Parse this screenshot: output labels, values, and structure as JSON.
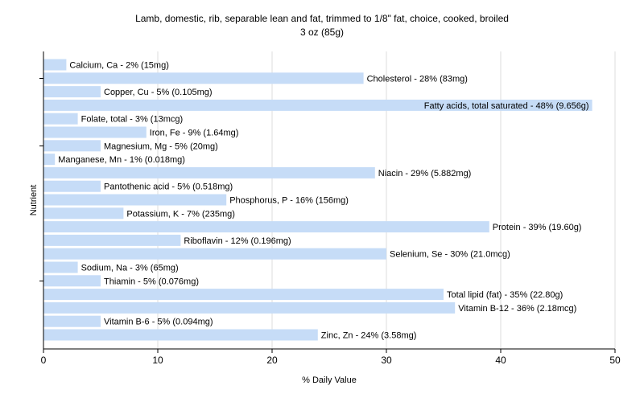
{
  "chart_data": {
    "type": "bar",
    "orientation": "horizontal",
    "title": "Lamb, domestic, rib, separable lean and fat, trimmed to 1/8\" fat, choice, cooked, broiled",
    "subtitle": "3 oz (85g)",
    "xlabel": "% Daily Value",
    "ylabel": "Nutrient",
    "xlim": [
      0,
      50
    ],
    "xticks": [
      0,
      10,
      20,
      30,
      40,
      50
    ],
    "grid": true,
    "bar_color": "#c6dcf7",
    "categories": [
      "Calcium, Ca",
      "Cholesterol",
      "Copper, Cu",
      "Fatty acids, total saturated",
      "Folate, total",
      "Iron, Fe",
      "Magnesium, Mg",
      "Manganese, Mn",
      "Niacin",
      "Pantothenic acid",
      "Phosphorus, P",
      "Potassium, K",
      "Protein",
      "Riboflavin",
      "Selenium, Se",
      "Sodium, Na",
      "Thiamin",
      "Total lipid (fat)",
      "Vitamin B-12",
      "Vitamin B-6",
      "Zinc, Zn"
    ],
    "values": [
      2,
      28,
      5,
      48,
      3,
      9,
      5,
      1,
      29,
      5,
      16,
      7,
      39,
      12,
      30,
      3,
      5,
      35,
      36,
      5,
      24
    ],
    "labels": [
      "Calcium, Ca - 2% (15mg)",
      "Cholesterol - 28% (83mg)",
      "Copper, Cu - 5% (0.105mg)",
      "Fatty acids, total saturated - 48% (9.656g)",
      "Folate, total - 3% (13mcg)",
      "Iron, Fe - 9% (1.64mg)",
      "Magnesium, Mg - 5% (20mg)",
      "Manganese, Mn - 1% (0.018mg)",
      "Niacin - 29% (5.882mg)",
      "Pantothenic acid - 5% (0.518mg)",
      "Phosphorus, P - 16% (156mg)",
      "Potassium, K - 7% (235mg)",
      "Protein - 39% (19.60g)",
      "Riboflavin - 12% (0.196mg)",
      "Selenium, Se - 30% (21.0mcg)",
      "Sodium, Na - 3% (65mg)",
      "Thiamin - 5% (0.076mg)",
      "Total lipid (fat) - 35% (22.80g)",
      "Vitamin B-12 - 36% (2.18mcg)",
      "Vitamin B-6 - 5% (0.094mg)",
      "Zinc, Zn - 24% (3.58mg)"
    ]
  }
}
